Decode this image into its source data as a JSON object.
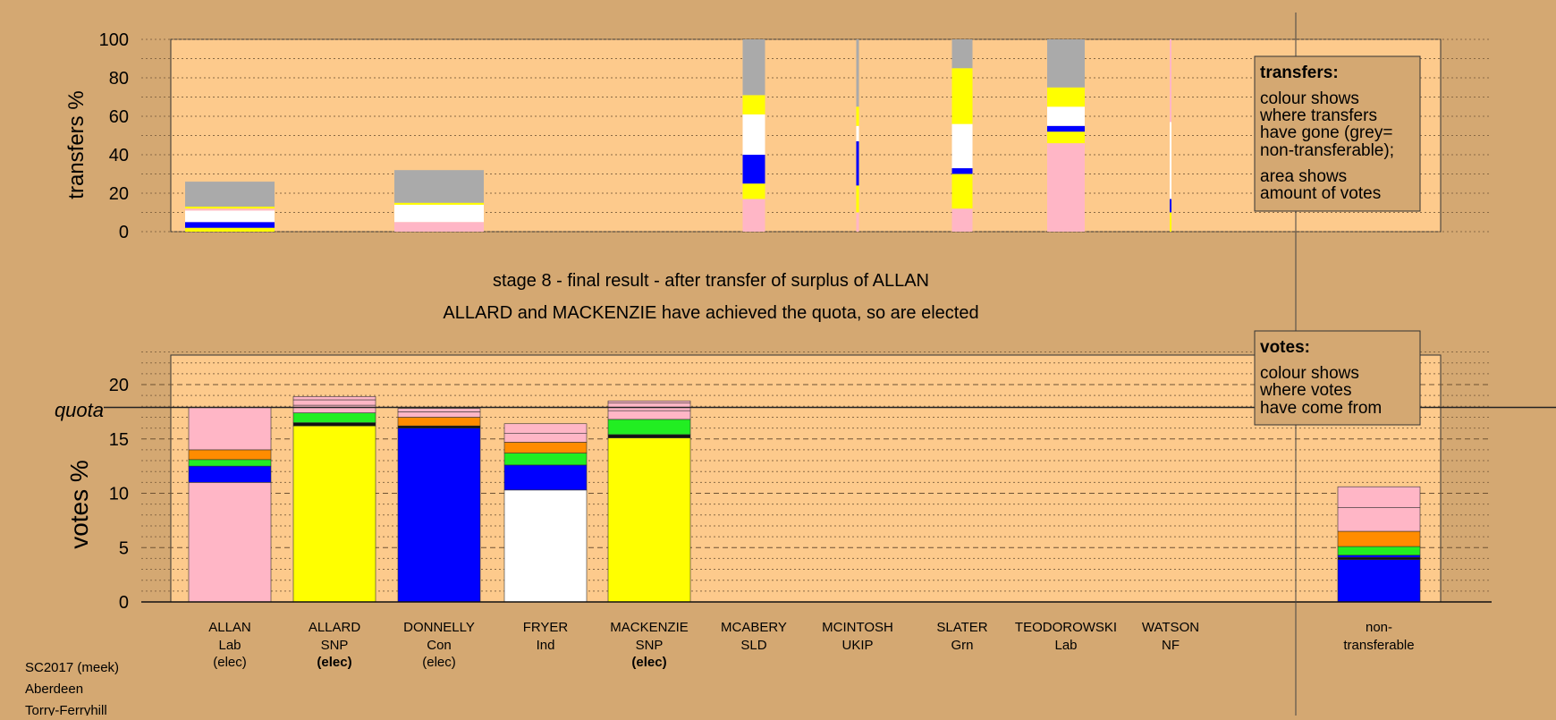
{
  "colors": {
    "page_bg": "#d4a872",
    "plot_bg": "#fdca8c",
    "Lab": "#ffb6c6",
    "SNP": "#ffff00",
    "Con": "#0000ff",
    "Ind": "#ffffff",
    "LD": "#ff8c00",
    "Grn": "#22ee22",
    "other": "#111111",
    "nontransferable": "#aaaaaa"
  },
  "title": {
    "line1": "stage 8 - final result - after transfer of surplus of ALLAN",
    "line2": "ALLARD and MACKENZIE have achieved the quota, so are elected"
  },
  "footer": {
    "line1": "SC2017 (meek)",
    "line2": "Aberdeen",
    "line3": "Torry-Ferryhill"
  },
  "chart_data": [
    {
      "type": "bar",
      "name": "transfers",
      "ylabel": "transfers %",
      "ylim": [
        0,
        100
      ],
      "yticks": [
        0,
        20,
        40,
        60,
        80,
        100
      ],
      "grid": true,
      "legend": {
        "title": "transfers:",
        "lines": [
          "colour shows",
          "where transfers",
          "have gone (grey=",
          "non-transferable);"
        ],
        "lines2": [
          "area shows",
          "amount of votes"
        ],
        "placement": "top-right"
      },
      "width_meaning": "relative amount of votes transferred",
      "bars": [
        {
          "candidate": "ALLAN",
          "width": 1.0,
          "segments": [
            {
              "color": "SNP",
              "value": 2
            },
            {
              "color": "Con",
              "value": 3
            },
            {
              "color": "Ind",
              "value": 6
            },
            {
              "color": "Lab",
              "value": 1
            },
            {
              "color": "SNP",
              "value": 1
            },
            {
              "color": "nontransferable",
              "value": 13
            }
          ]
        },
        {
          "candidate": "DONNELLY",
          "width": 1.0,
          "segments": [
            {
              "color": "Lab",
              "value": 5
            },
            {
              "color": "Ind",
              "value": 9
            },
            {
              "color": "SNP",
              "value": 1
            },
            {
              "color": "nontransferable",
              "value": 17
            }
          ]
        },
        {
          "candidate": "MCABERY",
          "width": 0.25,
          "segments": [
            {
              "color": "Lab",
              "value": 17
            },
            {
              "color": "SNP",
              "value": 8
            },
            {
              "color": "Con",
              "value": 15
            },
            {
              "color": "Ind",
              "value": 21
            },
            {
              "color": "SNP",
              "value": 10
            },
            {
              "color": "nontransferable",
              "value": 29
            }
          ]
        },
        {
          "candidate": "MCINTOSH",
          "width": 0.03,
          "segments": [
            {
              "color": "Lab",
              "value": 10
            },
            {
              "color": "SNP",
              "value": 14
            },
            {
              "color": "Con",
              "value": 23
            },
            {
              "color": "Ind",
              "value": 8
            },
            {
              "color": "SNP",
              "value": 10
            },
            {
              "color": "nontransferable",
              "value": 35
            }
          ]
        },
        {
          "candidate": "SLATER",
          "width": 0.23,
          "segments": [
            {
              "color": "Lab",
              "value": 12
            },
            {
              "color": "SNP",
              "value": 18
            },
            {
              "color": "Con",
              "value": 3
            },
            {
              "color": "Ind",
              "value": 23
            },
            {
              "color": "SNP",
              "value": 29
            },
            {
              "color": "nontransferable",
              "value": 15
            }
          ]
        },
        {
          "candidate": "TEODOROWSKI",
          "width": 0.42,
          "segments": [
            {
              "color": "Lab",
              "value": 46
            },
            {
              "color": "SNP",
              "value": 6
            },
            {
              "color": "Con",
              "value": 3
            },
            {
              "color": "Ind",
              "value": 10
            },
            {
              "color": "SNP",
              "value": 10
            },
            {
              "color": "nontransferable",
              "value": 25
            }
          ]
        },
        {
          "candidate": "WATSON",
          "width": 0.02,
          "segments": [
            {
              "color": "SNP",
              "value": 10
            },
            {
              "color": "Con",
              "value": 7
            },
            {
              "color": "Ind",
              "value": 40
            },
            {
              "color": "Lab",
              "value": 43
            }
          ]
        }
      ]
    },
    {
      "type": "bar",
      "name": "votes",
      "ylabel": "votes %",
      "ylim": [
        0,
        23
      ],
      "yticks": [
        0,
        5,
        10,
        15,
        20
      ],
      "quota": 17.9,
      "quota_label": "quota",
      "grid": true,
      "legend": {
        "title": "votes:",
        "lines": [
          "colour shows",
          "where votes",
          "have come from"
        ],
        "placement": "top-right"
      },
      "candidates": [
        {
          "name": "ALLAN",
          "party": "Lab",
          "status": "(elec)",
          "bold": false,
          "segments": [
            {
              "color": "Lab",
              "value": 11.0
            },
            {
              "color": "Con",
              "value": 1.5
            },
            {
              "color": "Grn",
              "value": 0.6
            },
            {
              "color": "LD",
              "value": 0.9
            },
            {
              "color": "Lab",
              "value": 3.9
            }
          ]
        },
        {
          "name": "ALLARD",
          "party": "SNP",
          "status": "(elec)",
          "bold": true,
          "segments": [
            {
              "color": "SNP",
              "value": 16.2
            },
            {
              "color": "other",
              "value": 0.3
            },
            {
              "color": "Grn",
              "value": 0.9
            },
            {
              "color": "Lab",
              "value": 0.7
            },
            {
              "color": "Lab",
              "value": 0.5
            },
            {
              "color": "Lab",
              "value": 0.3
            }
          ]
        },
        {
          "name": "DONNELLY",
          "party": "Con",
          "status": "(elec)",
          "bold": false,
          "segments": [
            {
              "color": "Con",
              "value": 16.0
            },
            {
              "color": "other",
              "value": 0.2
            },
            {
              "color": "LD",
              "value": 0.8
            },
            {
              "color": "Lab",
              "value": 0.5
            },
            {
              "color": "Lab",
              "value": 0.3
            }
          ]
        },
        {
          "name": "FRYER",
          "party": "Ind",
          "status": "",
          "bold": false,
          "segments": [
            {
              "color": "Ind",
              "value": 10.3
            },
            {
              "color": "Con",
              "value": 2.3
            },
            {
              "color": "Grn",
              "value": 1.1
            },
            {
              "color": "LD",
              "value": 1.0
            },
            {
              "color": "Lab",
              "value": 0.8
            },
            {
              "color": "Lab",
              "value": 0.9
            }
          ]
        },
        {
          "name": "MACKENZIE",
          "party": "SNP",
          "status": "(elec)",
          "bold": true,
          "segments": [
            {
              "color": "SNP",
              "value": 15.1
            },
            {
              "color": "other",
              "value": 0.3
            },
            {
              "color": "Grn",
              "value": 1.4
            },
            {
              "color": "Lab",
              "value": 0.8
            },
            {
              "color": "Lab",
              "value": 0.7
            },
            {
              "color": "Lab",
              "value": 0.2
            }
          ]
        },
        {
          "name": "MCABERY",
          "party": "SLD",
          "status": "",
          "bold": false,
          "segments": []
        },
        {
          "name": "MCINTOSH",
          "party": "UKIP",
          "status": "",
          "bold": false,
          "segments": []
        },
        {
          "name": "SLATER",
          "party": "Grn",
          "status": "",
          "bold": false,
          "segments": []
        },
        {
          "name": "TEODOROWSKI",
          "party": "Lab",
          "status": "",
          "bold": false,
          "segments": []
        },
        {
          "name": "WATSON",
          "party": "NF",
          "status": "",
          "bold": false,
          "segments": []
        }
      ],
      "nontransferable": {
        "label1": "non-",
        "label2": "transferable",
        "segments": [
          {
            "color": "Con",
            "value": 3.9
          },
          {
            "color": "other",
            "value": 0.2
          },
          {
            "color": "Con",
            "value": 0.2
          },
          {
            "color": "Grn",
            "value": 0.8
          },
          {
            "color": "LD",
            "value": 1.4
          },
          {
            "color": "Lab",
            "value": 2.2
          },
          {
            "color": "Lab",
            "value": 1.9
          }
        ]
      }
    }
  ]
}
